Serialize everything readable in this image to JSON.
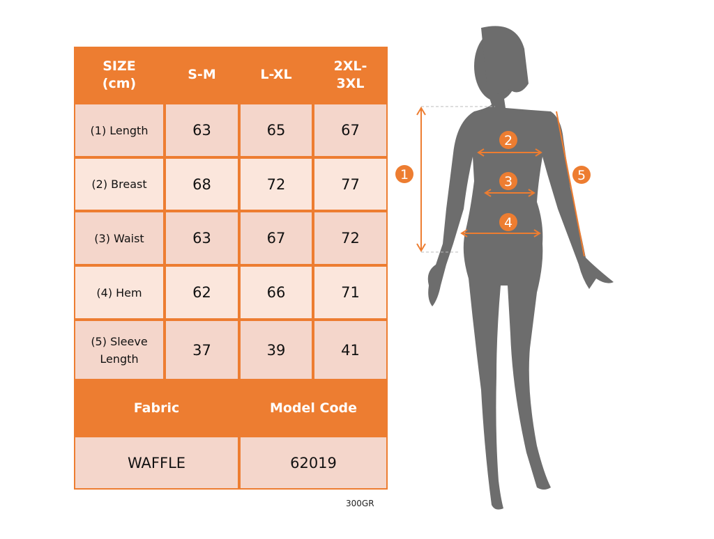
{
  "colors": {
    "accent": "#ed7d31",
    "cell_dark": "#f4d6cb",
    "cell_light": "#fbe6dc",
    "silhouette": "#6d6d6d"
  },
  "table": {
    "header": [
      "SIZE\n(cm)",
      "S-M",
      "L-XL",
      "2XL-\n3XL"
    ],
    "rows": [
      {
        "label": "(1) Length",
        "values": [
          "63",
          "65",
          "67"
        ]
      },
      {
        "label": "(2) Breast",
        "values": [
          "68",
          "72",
          "77"
        ]
      },
      {
        "label": "(3) Waist",
        "values": [
          "63",
          "67",
          "72"
        ]
      },
      {
        "label": "(4) Hem",
        "values": [
          "62",
          "66",
          "71"
        ]
      },
      {
        "label": "(5) Sleeve\nLength",
        "values": [
          "37",
          "39",
          "41"
        ]
      }
    ],
    "footer_headers": [
      "Fabric",
      "Model Code"
    ],
    "footer_values": [
      "WAFFLE",
      "62019"
    ]
  },
  "note": "300GR",
  "diagram": {
    "markers": [
      "1",
      "2",
      "3",
      "4",
      "5"
    ]
  }
}
